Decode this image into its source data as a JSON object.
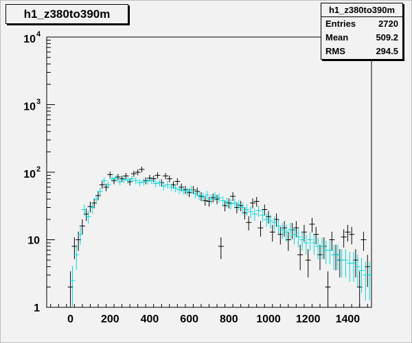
{
  "title": "h1_z380to390m",
  "stats": {
    "name": "h1_z380to390m",
    "rows": [
      {
        "label": "Entries",
        "value": "2720"
      },
      {
        "label": "Mean",
        "value": "509.2"
      },
      {
        "label": "RMS",
        "value": "294.5"
      }
    ]
  },
  "colors": {
    "series_a": "#000000",
    "series_b": "#00d8d8"
  },
  "chart_data": {
    "type": "scatter",
    "title": "h1_z380to390m",
    "xlabel": "",
    "ylabel": "",
    "xlim": [
      -120,
      1520
    ],
    "ylim": [
      1,
      10000
    ],
    "yscale": "log",
    "grid": false,
    "x_ticks": [
      {
        "value": 0,
        "label": "0"
      },
      {
        "value": 200,
        "label": "200"
      },
      {
        "value": 400,
        "label": "400"
      },
      {
        "value": 600,
        "label": "600"
      },
      {
        "value": 800,
        "label": "800"
      },
      {
        "value": 1000,
        "label": "1000"
      },
      {
        "value": 1200,
        "label": "1200"
      },
      {
        "value": 1400,
        "label": "1400"
      }
    ],
    "y_ticks": [
      {
        "value": 1,
        "label": "1"
      },
      {
        "value": 10,
        "label": "10"
      },
      {
        "value": 100,
        "label": "10",
        "exp": "2"
      },
      {
        "value": 1000,
        "label": "10",
        "exp": "3"
      },
      {
        "value": 10000,
        "label": "10",
        "exp": "4"
      }
    ],
    "series": [
      {
        "color": "#000000",
        "x": [
          0,
          20,
          40,
          60,
          80,
          100,
          120,
          140,
          160,
          180,
          200,
          220,
          240,
          260,
          280,
          300,
          320,
          340,
          360,
          380,
          400,
          420,
          440,
          460,
          480,
          500,
          520,
          540,
          560,
          580,
          600,
          620,
          640,
          660,
          680,
          700,
          720,
          740,
          760,
          780,
          800,
          820,
          840,
          860,
          880,
          900,
          920,
          940,
          960,
          980,
          1000,
          1020,
          1040,
          1060,
          1080,
          1100,
          1120,
          1140,
          1160,
          1180,
          1200,
          1220,
          1240,
          1260,
          1280,
          1300,
          1320,
          1340,
          1360,
          1380,
          1400,
          1420,
          1440,
          1460,
          1480,
          1500
        ],
        "y": [
          2,
          8,
          10,
          16,
          24,
          31,
          35,
          45,
          65,
          60,
          92,
          75,
          85,
          80,
          88,
          72,
          95,
          100,
          110,
          75,
          82,
          80,
          90,
          70,
          88,
          80,
          65,
          73,
          60,
          55,
          50,
          55,
          52,
          44,
          38,
          37,
          42,
          40,
          8,
          32,
          35,
          44,
          30,
          32,
          25,
          18,
          35,
          37,
          15,
          28,
          22,
          13,
          20,
          12,
          15,
          10,
          14,
          15,
          6,
          13,
          5,
          17,
          12,
          6,
          8,
          2,
          10,
          6,
          5,
          11,
          13,
          12,
          5,
          2,
          10,
          4
        ]
      },
      {
        "color": "#00d8d8",
        "x": [
          10,
          30,
          50,
          70,
          90,
          110,
          130,
          150,
          170,
          190,
          210,
          230,
          250,
          270,
          290,
          310,
          330,
          350,
          370,
          390,
          410,
          430,
          450,
          470,
          490,
          510,
          530,
          550,
          570,
          590,
          610,
          630,
          650,
          670,
          690,
          710,
          730,
          750,
          770,
          790,
          810,
          830,
          850,
          870,
          890,
          910,
          930,
          950,
          970,
          990,
          1010,
          1030,
          1050,
          1070,
          1090,
          1110,
          1130,
          1150,
          1170,
          1190,
          1210,
          1230,
          1250,
          1270,
          1290,
          1310,
          1330,
          1350,
          1370,
          1390,
          1410,
          1430,
          1450,
          1470,
          1490,
          1510
        ],
        "y": [
          2.5,
          6,
          12,
          28,
          22,
          30,
          40,
          52,
          75,
          65,
          80,
          82,
          72,
          78,
          76,
          80,
          75,
          70,
          72,
          74,
          75,
          68,
          70,
          62,
          65,
          60,
          58,
          55,
          54,
          52,
          55,
          48,
          45,
          43,
          46,
          40,
          44,
          42,
          38,
          36,
          34,
          35,
          33,
          30,
          28,
          26,
          24,
          27,
          23,
          20,
          19,
          18,
          16,
          14,
          13,
          14,
          12,
          11,
          10,
          9,
          10,
          9,
          8,
          8,
          7,
          7,
          6,
          6,
          5,
          5,
          4.5,
          4.5,
          4,
          3.5,
          3,
          3
        ]
      }
    ]
  }
}
